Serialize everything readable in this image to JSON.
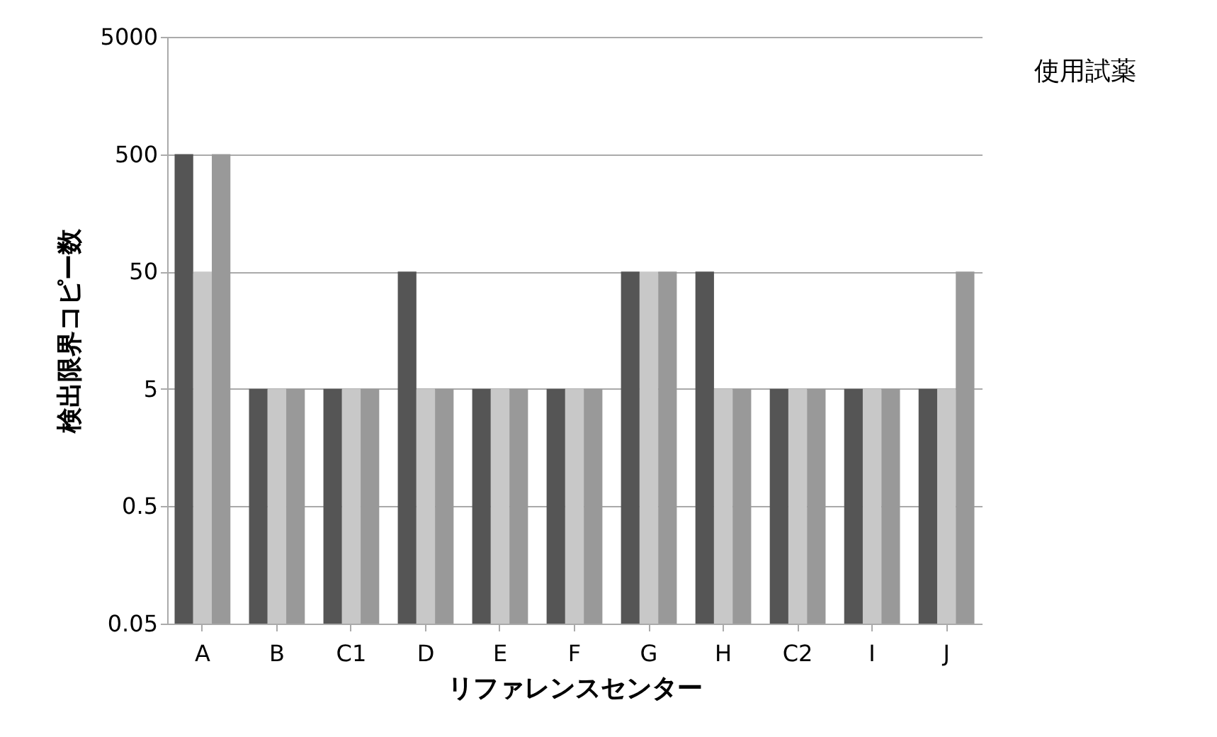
{
  "chart_data": {
    "type": "bar",
    "xlabel": "リファレンスセンター",
    "ylabel": "検出限界コピー数",
    "annotations": [
      "使用試薬"
    ],
    "categories": [
      "A",
      "B",
      "C1",
      "D",
      "E",
      "F",
      "G",
      "H",
      "C2",
      "I",
      "J"
    ],
    "series": [
      {
        "color": "#555555",
        "values": [
          500,
          5,
          5,
          50,
          5,
          5,
          50,
          50,
          5,
          5,
          5
        ]
      },
      {
        "color": "#c8c8c8",
        "values": [
          50,
          5,
          5,
          5,
          5,
          5,
          50,
          5,
          5,
          5,
          5
        ]
      },
      {
        "color": "#999999",
        "values": [
          500,
          5,
          5,
          5,
          5,
          5,
          50,
          5,
          5,
          5,
          50
        ]
      }
    ],
    "log": true,
    "ylim": [
      0.05,
      5000
    ],
    "yticks": [
      0.05,
      0.5,
      5,
      50,
      500,
      5000
    ],
    "grid": "y"
  }
}
